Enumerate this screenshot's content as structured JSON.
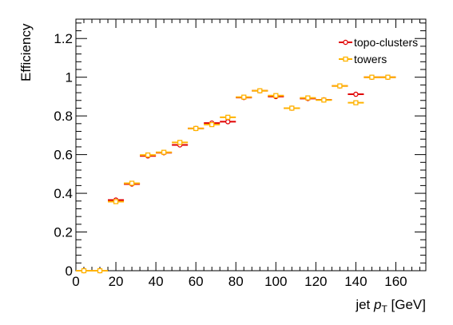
{
  "chart_data": {
    "type": "scatter",
    "xlabel": "jet p_T [GeV]",
    "xlabel_parts": {
      "main": "jet ",
      "var": "p",
      "sub": "T",
      "unit": " [GeV]"
    },
    "ylabel": "Efficiency",
    "xlim": [
      0,
      175
    ],
    "ylim": [
      0,
      1.3
    ],
    "x_ticks": [
      0,
      20,
      40,
      60,
      80,
      100,
      120,
      140,
      160
    ],
    "y_ticks": [
      0,
      0.2,
      0.4,
      0.6,
      0.8,
      1,
      1.2
    ],
    "x_tick_labels": [
      "0",
      "20",
      "40",
      "60",
      "80",
      "100",
      "120",
      "140",
      "160"
    ],
    "y_tick_labels": [
      "0",
      "0.2",
      "0.4",
      "0.6",
      "0.8",
      "1",
      "1.2"
    ],
    "legend_position": "top-right",
    "bin_half_width": 4,
    "series": [
      {
        "name": "topo-clusters",
        "color": "#e00000",
        "marker": "circle",
        "x": [
          4,
          12,
          20,
          28,
          36,
          44,
          52,
          60,
          68,
          76,
          84,
          92,
          100,
          108,
          116,
          124,
          132,
          140,
          148,
          156
        ],
        "y": [
          0,
          0,
          0.365,
          0.448,
          0.593,
          0.61,
          0.65,
          0.735,
          0.763,
          0.77,
          0.895,
          0.93,
          0.9,
          0.84,
          0.89,
          0.883,
          0.955,
          0.912,
          1.0,
          1.0
        ]
      },
      {
        "name": "towers",
        "color": "#ffb300",
        "marker": "square",
        "x": [
          4,
          12,
          20,
          28,
          36,
          44,
          52,
          60,
          68,
          76,
          84,
          92,
          100,
          108,
          116,
          124,
          132,
          140,
          148,
          156
        ],
        "y": [
          0,
          0,
          0.357,
          0.452,
          0.598,
          0.612,
          0.663,
          0.735,
          0.755,
          0.793,
          0.897,
          0.93,
          0.905,
          0.84,
          0.893,
          0.882,
          0.955,
          0.868,
          1.0,
          1.0
        ]
      }
    ]
  }
}
